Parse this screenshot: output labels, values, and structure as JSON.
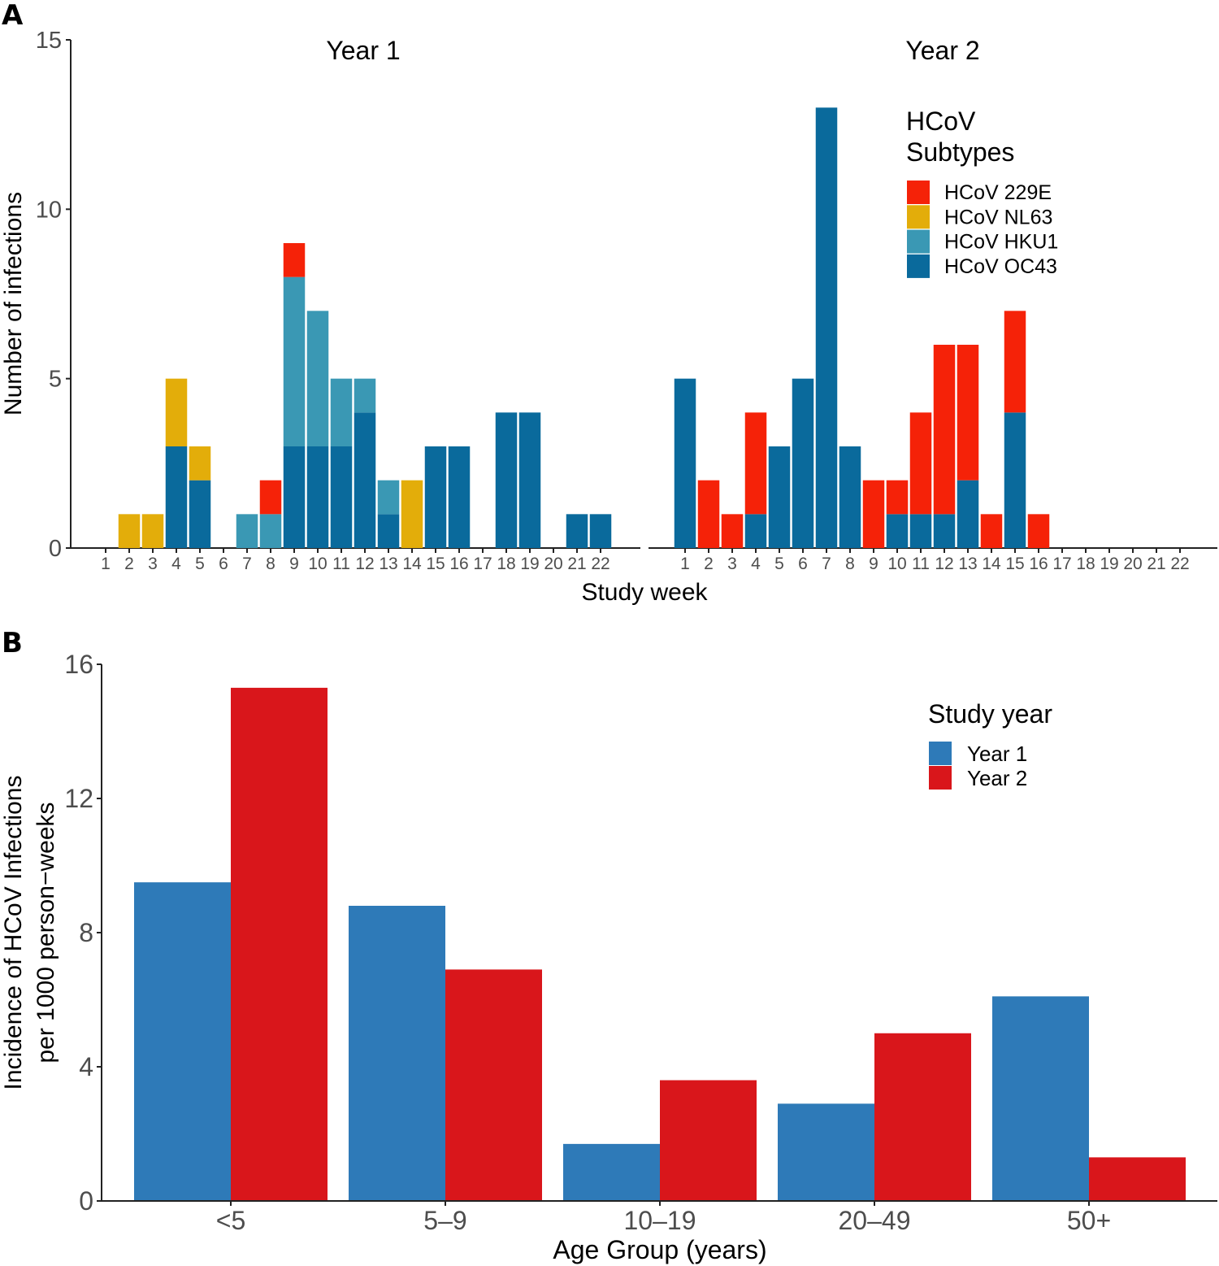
{
  "colors": {
    "HCoV 229E": "#f52208",
    "HCoV NL63": "#e3ad0a",
    "HCoV HKU1": "#3a98b4",
    "HCoV OC43": "#0a6a9c",
    "Year 1": "#2e7ab8",
    "Year 2": "#d9161b"
  },
  "chart_data": [
    {
      "panel": "A",
      "type": "bar",
      "stacked": true,
      "ylabel": "Number of infections",
      "xlabel": "Study week",
      "ylim": [
        0,
        15
      ],
      "yticks": [
        0,
        5,
        10,
        15
      ],
      "categories": [
        "1",
        "2",
        "3",
        "4",
        "5",
        "6",
        "7",
        "8",
        "9",
        "10",
        "11",
        "12",
        "13",
        "14",
        "15",
        "16",
        "17",
        "18",
        "19",
        "20",
        "21",
        "22"
      ],
      "legend": {
        "title": "HCoV Subtypes",
        "position": "top-right",
        "entries": [
          "HCoV 229E",
          "HCoV NL63",
          "HCoV HKU1",
          "HCoV OC43"
        ]
      },
      "stack_order": [
        "HCoV OC43",
        "HCoV HKU1",
        "HCoV NL63",
        "HCoV 229E"
      ],
      "facets": [
        {
          "title": "Year 1",
          "series": [
            {
              "name": "HCoV OC43",
              "values": [
                0,
                0,
                0,
                3,
                2,
                0,
                0,
                0,
                3,
                3,
                3,
                4,
                1,
                0,
                3,
                3,
                0,
                4,
                4,
                0,
                1,
                1
              ]
            },
            {
              "name": "HCoV HKU1",
              "values": [
                0,
                0,
                0,
                0,
                0,
                0,
                1,
                1,
                5,
                4,
                2,
                1,
                1,
                0,
                0,
                0,
                0,
                0,
                0,
                0,
                0,
                0
              ]
            },
            {
              "name": "HCoV NL63",
              "values": [
                0,
                1,
                1,
                2,
                1,
                0,
                0,
                0,
                0,
                0,
                0,
                0,
                0,
                2,
                0,
                0,
                0,
                0,
                0,
                0,
                0,
                0
              ]
            },
            {
              "name": "HCoV 229E",
              "values": [
                0,
                0,
                0,
                0,
                0,
                0,
                0,
                1,
                1,
                0,
                0,
                0,
                0,
                0,
                0,
                0,
                0,
                0,
                0,
                0,
                0,
                0
              ]
            }
          ]
        },
        {
          "title": "Year 2",
          "series": [
            {
              "name": "HCoV OC43",
              "values": [
                5,
                0,
                0,
                1,
                3,
                5,
                13,
                3,
                0,
                1,
                1,
                1,
                2,
                0,
                4,
                0,
                0,
                0,
                0,
                0,
                0,
                0
              ]
            },
            {
              "name": "HCoV HKU1",
              "values": [
                0,
                0,
                0,
                0,
                0,
                0,
                0,
                0,
                0,
                0,
                0,
                0,
                0,
                0,
                0,
                0,
                0,
                0,
                0,
                0,
                0,
                0
              ]
            },
            {
              "name": "HCoV NL63",
              "values": [
                0,
                0,
                0,
                0,
                0,
                0,
                0,
                0,
                0,
                0,
                0,
                0,
                0,
                0,
                0,
                0,
                0,
                0,
                0,
                0,
                0,
                0
              ]
            },
            {
              "name": "HCoV 229E",
              "values": [
                0,
                2,
                1,
                3,
                0,
                0,
                0,
                0,
                2,
                1,
                3,
                5,
                4,
                1,
                3,
                1,
                0,
                0,
                0,
                0,
                0,
                0
              ]
            }
          ]
        }
      ]
    },
    {
      "panel": "B",
      "type": "bar",
      "stacked": false,
      "ylabel_lines": [
        "Incidence of HCoV Infections",
        "per 1000 person−weeks"
      ],
      "xlabel": "Age Group (years)",
      "ylim": [
        0,
        16
      ],
      "yticks": [
        0,
        4,
        8,
        12,
        16
      ],
      "categories": [
        "<5",
        "5–9",
        "10–19",
        "20–49",
        "50+"
      ],
      "legend": {
        "title": "Study year",
        "position": "top-right",
        "entries": [
          "Year 1",
          "Year 2"
        ]
      },
      "series": [
        {
          "name": "Year 1",
          "values": [
            9.5,
            8.8,
            1.7,
            2.9,
            6.1
          ]
        },
        {
          "name": "Year 2",
          "values": [
            15.3,
            6.9,
            3.6,
            5.0,
            1.3
          ]
        }
      ]
    }
  ],
  "labels": {
    "panel_a": "A",
    "panel_b": "B"
  }
}
